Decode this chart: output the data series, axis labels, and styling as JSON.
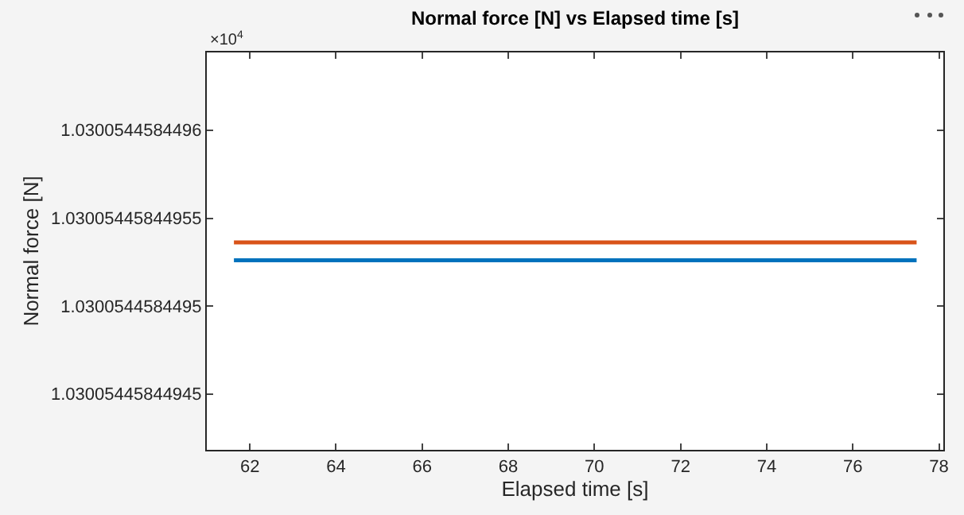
{
  "chart_data": {
    "type": "line",
    "title": "Normal force [N] vs Elapsed time [s]",
    "xlabel": "Elapsed time [s]",
    "ylabel": "Normal force [N]",
    "annotations": [
      "×10$^{4}$"
    ],
    "x": [
      61.63,
      77.48
    ],
    "series": [
      {
        "color": "#0072bd",
        "values": [
          1.030054458449526,
          1.030054458449526
        ]
      },
      {
        "color": "#d95319",
        "values": [
          1.030054458449536,
          1.030054458449536
        ]
      }
    ],
    "xlim": [
      61.0,
      78.1
    ],
    "xticks": [
      62,
      64,
      66,
      68,
      70,
      72,
      74,
      76,
      78
    ],
    "ylim": [
      1.030054458449418,
      1.030054458449644
    ],
    "yticks": [
      1.03005445844945,
      1.0300544584495,
      1.03005445844955,
      1.0300544584496
    ],
    "grid": false,
    "marker": "none",
    "line_style": "solid"
  }
}
